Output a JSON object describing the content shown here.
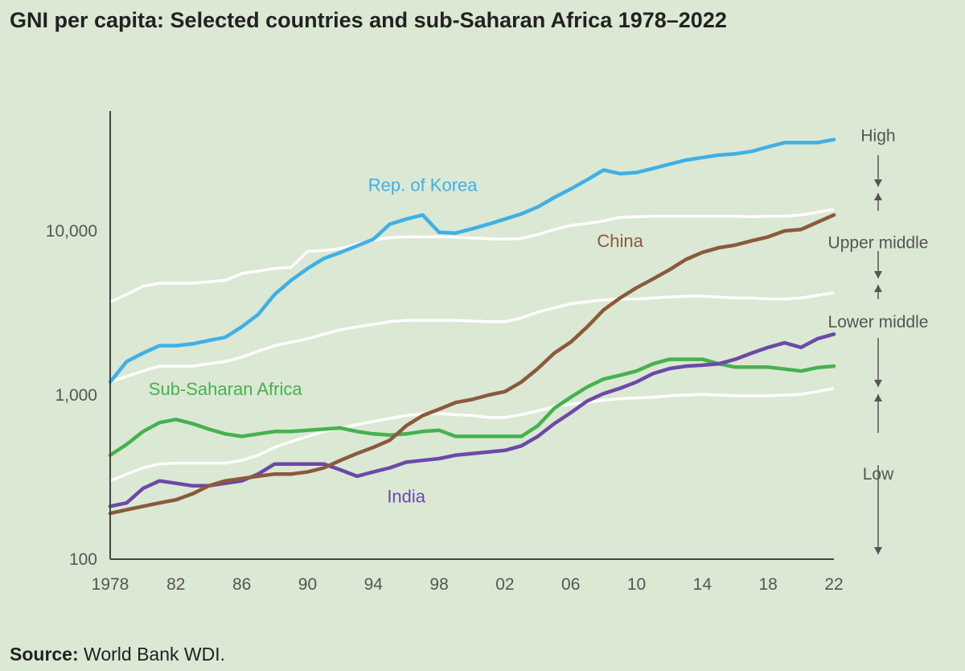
{
  "title": "GNI per capita: Selected countries and sub-Saharan Africa 1978–2022",
  "source": {
    "label": "Source:",
    "text": "World Bank WDI."
  },
  "colors": {
    "background": "#dbe8d3",
    "axis": "#444444",
    "threshold": "#ffffff",
    "korea": "#3fb0e6",
    "china": "#8a5a3c",
    "india": "#6b49a8",
    "ssa": "#45b24f",
    "band_arrow": "#555555"
  },
  "chart_data": {
    "type": "line",
    "title": "GNI per capita: Selected countries and sub-Saharan Africa 1978–2022",
    "xlabel": "",
    "ylabel": "",
    "y_scale": "log",
    "xlim": [
      1978,
      2022
    ],
    "ylim": [
      100,
      45000
    ],
    "grid": false,
    "x_ticks": [
      {
        "value": 1978,
        "label": "1978"
      },
      {
        "value": 1982,
        "label": "82"
      },
      {
        "value": 1986,
        "label": "86"
      },
      {
        "value": 1990,
        "label": "90"
      },
      {
        "value": 1994,
        "label": "94"
      },
      {
        "value": 1998,
        "label": "98"
      },
      {
        "value": 2002,
        "label": "02"
      },
      {
        "value": 2006,
        "label": "06"
      },
      {
        "value": 2010,
        "label": "10"
      },
      {
        "value": 2014,
        "label": "14"
      },
      {
        "value": 2018,
        "label": "18"
      },
      {
        "value": 2022,
        "label": "22"
      }
    ],
    "y_ticks": [
      {
        "value": 100,
        "label": "100"
      },
      {
        "value": 1000,
        "label": "1,000"
      },
      {
        "value": 10000,
        "label": "10,000"
      }
    ],
    "x": [
      1978,
      1979,
      1980,
      1981,
      1982,
      1983,
      1984,
      1985,
      1986,
      1987,
      1988,
      1989,
      1990,
      1991,
      1992,
      1993,
      1994,
      1995,
      1996,
      1997,
      1998,
      1999,
      2000,
      2001,
      2002,
      2003,
      2004,
      2005,
      2006,
      2007,
      2008,
      2009,
      2010,
      2011,
      2012,
      2013,
      2014,
      2015,
      2016,
      2017,
      2018,
      2019,
      2020,
      2021,
      2022
    ],
    "series": [
      {
        "name": "Rep. of Korea",
        "key": "korea",
        "values": [
          1200,
          1600,
          1800,
          2000,
          2000,
          2050,
          2150,
          2250,
          2600,
          3100,
          4100,
          5000,
          5900,
          6800,
          7400,
          8100,
          8900,
          11000,
          11800,
          12500,
          9800,
          9700,
          10300,
          11000,
          11800,
          12700,
          14000,
          16000,
          18000,
          20500,
          23500,
          22300,
          22700,
          24000,
          25500,
          27000,
          28000,
          29000,
          29500,
          30500,
          32500,
          34500,
          34500,
          34500,
          36000
        ]
      },
      {
        "name": "China",
        "key": "china",
        "values": [
          190,
          200,
          210,
          220,
          230,
          250,
          280,
          300,
          310,
          320,
          330,
          330,
          340,
          360,
          400,
          440,
          480,
          530,
          650,
          750,
          820,
          900,
          940,
          1000,
          1050,
          1200,
          1450,
          1800,
          2100,
          2600,
          3300,
          3900,
          4500,
          5100,
          5800,
          6700,
          7400,
          7900,
          8200,
          8700,
          9200,
          10000,
          10200,
          11300,
          12500
        ]
      },
      {
        "name": "India",
        "key": "india",
        "values": [
          210,
          220,
          270,
          300,
          290,
          280,
          280,
          290,
          300,
          330,
          380,
          380,
          380,
          380,
          350,
          320,
          340,
          360,
          390,
          400,
          410,
          430,
          440,
          450,
          460,
          490,
          560,
          670,
          780,
          920,
          1020,
          1100,
          1200,
          1350,
          1450,
          1500,
          1520,
          1550,
          1650,
          1800,
          1950,
          2080,
          1950,
          2200,
          2350
        ]
      },
      {
        "name": "Sub-Saharan Africa",
        "key": "ssa",
        "values": [
          430,
          500,
          600,
          680,
          710,
          670,
          620,
          580,
          560,
          580,
          600,
          600,
          610,
          620,
          630,
          600,
          580,
          570,
          580,
          600,
          610,
          560,
          560,
          560,
          560,
          560,
          650,
          830,
          970,
          1120,
          1250,
          1320,
          1400,
          1550,
          1650,
          1650,
          1650,
          1550,
          1480,
          1480,
          1480,
          1440,
          1400,
          1470,
          1500
        ]
      },
      {
        "key": "thr_high",
        "role": "threshold",
        "values": [
          3700,
          4100,
          4600,
          4800,
          4800,
          4800,
          4900,
          5000,
          5500,
          5700,
          5900,
          6000,
          7500,
          7600,
          7800,
          8300,
          8800,
          9100,
          9200,
          9200,
          9200,
          9150,
          9050,
          8950,
          8900,
          9000,
          9500,
          10200,
          10800,
          11100,
          11500,
          12100,
          12200,
          12300,
          12300,
          12300,
          12300,
          12300,
          12300,
          12200,
          12300,
          12300,
          12500,
          13000,
          13500
        ]
      },
      {
        "key": "thr_upper",
        "role": "threshold",
        "values": [
          1200,
          1300,
          1400,
          1500,
          1500,
          1500,
          1550,
          1600,
          1700,
          1850,
          2000,
          2100,
          2200,
          2350,
          2500,
          2600,
          2700,
          2800,
          2850,
          2850,
          2850,
          2850,
          2820,
          2800,
          2800,
          2950,
          3200,
          3400,
          3600,
          3700,
          3800,
          3850,
          3850,
          3900,
          3950,
          4000,
          4000,
          3950,
          3900,
          3900,
          3850,
          3850,
          3900,
          4050,
          4200
        ]
      },
      {
        "key": "thr_lower",
        "role": "threshold",
        "values": [
          300,
          330,
          360,
          380,
          385,
          385,
          385,
          385,
          400,
          430,
          480,
          520,
          560,
          600,
          630,
          660,
          690,
          720,
          750,
          770,
          770,
          760,
          750,
          730,
          730,
          760,
          800,
          850,
          880,
          900,
          930,
          950,
          960,
          970,
          990,
          1000,
          1010,
          1000,
          990,
          990,
          990,
          1000,
          1010,
          1050,
          1100
        ]
      }
    ],
    "annotations": [
      {
        "text": "Rep. of Korea",
        "series": "korea",
        "x": 1997,
        "y": 17500
      },
      {
        "text": "China",
        "series": "china",
        "x": 2009,
        "y": 8000
      },
      {
        "text": "India",
        "series": "india",
        "x": 1996,
        "y": 222
      },
      {
        "text": "Sub-Saharan Africa",
        "series": "ssa",
        "x": 1985,
        "y": 1000
      }
    ],
    "income_bands": [
      {
        "label": "High",
        "y": 38000
      },
      {
        "label": "Upper middle",
        "y": 8500
      },
      {
        "label": "Lower middle",
        "y": 2800
      },
      {
        "label": "Low",
        "y": 330
      }
    ]
  }
}
